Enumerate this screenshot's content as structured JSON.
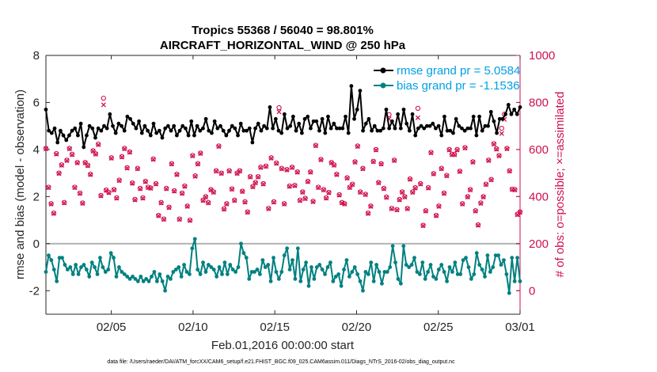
{
  "chart_data": {
    "type": "line",
    "title": "Tropics 55368 / 56040 = 98.801%",
    "subtitle": "AIRCRAFT_HORIZONTAL_WIND @ 250 hPa",
    "xlabel": "Feb.01,2016 00:00:00 start",
    "ylabel_left": "rmse and bias (model - observation)",
    "ylabel_right": "# of obs: o=possible; ×=assimilated",
    "footnote": "data file: /Users/raeder/DAI/ATM_forcXX/CAM6_setup/f.e21.FHIST_BGC.f09_025.CAM6assim.011/Diags_NTrS_2016-02/obs_diag_output.nc",
    "x_ticks": [
      "02/05",
      "02/10",
      "02/15",
      "02/20",
      "02/25",
      "03/01"
    ],
    "x_tick_days": [
      5,
      10,
      15,
      20,
      25,
      30
    ],
    "xlim": [
      1,
      30
    ],
    "ylim_left": [
      -3,
      8
    ],
    "yticks_left": [
      "-2",
      "0",
      "2",
      "4",
      "6",
      "8"
    ],
    "ylim_right": [
      -100,
      1000
    ],
    "yticks_right": [
      "0",
      "200",
      "400",
      "600",
      "800",
      "1000"
    ],
    "grid": false,
    "legend_position": "top-right",
    "colors": {
      "rmse": "#000000",
      "bias": "#008080",
      "obs": "#d0104c",
      "zero": "#b3b3b3",
      "axis": "#262626",
      "legend_text": "#00a0e6"
    },
    "series": [
      {
        "name": "rmse grand pr = 5.0584",
        "key": "rmse",
        "values": [
          5.7,
          4.8,
          4.7,
          4.9,
          4.3,
          4.8,
          4.6,
          4.4,
          4.6,
          4.8,
          4.9,
          4.6,
          5.1,
          4.1,
          4.6,
          5.0,
          4.9,
          4.5,
          4.9,
          4.8,
          5.0,
          4.9,
          5.5,
          5.0,
          4.7,
          5.1,
          5.0,
          4.8,
          5.4,
          5.3,
          5.1,
          4.9,
          5.2,
          4.7,
          5.0,
          4.8,
          4.6,
          5.1,
          4.7,
          4.8,
          4.5,
          4.9,
          5.0,
          4.8,
          5.0,
          4.6,
          4.8,
          5.0,
          4.9,
          4.6,
          5.2,
          4.6,
          5.0,
          4.8,
          4.9,
          5.3,
          4.8,
          4.7,
          5.2,
          4.9,
          5.0,
          4.8,
          4.6,
          4.8,
          5.0,
          4.9,
          4.6,
          5.1,
          4.8,
          4.8,
          4.9,
          4.3,
          4.9,
          5.1,
          4.8,
          5.0,
          4.9,
          5.8,
          4.9,
          5.3,
          4.8,
          4.7,
          5.5,
          4.9,
          5.0,
          5.4,
          4.8,
          5.1,
          4.7,
          5.3,
          5.4,
          4.9,
          5.2,
          5.2,
          4.8,
          5.3,
          4.7,
          5.4,
          4.9,
          5.1,
          4.9,
          4.9,
          4.9,
          5.4,
          4.7,
          6.7,
          5.3,
          5.7,
          6.5,
          4.8,
          5.1,
          5.3,
          4.8,
          5.0,
          4.8,
          4.8,
          4.9,
          5.7,
          4.9,
          5.2,
          4.9,
          5.5,
          4.9,
          5.7,
          5.1,
          4.8,
          5.5,
          4.6,
          4.9,
          5.0,
          4.9,
          5.0,
          5.0,
          5.1,
          4.9,
          5.0,
          4.6,
          5.4,
          4.8,
          4.8,
          4.7,
          5.3,
          5.0,
          4.9,
          4.8,
          4.9,
          4.9,
          5.4,
          4.6,
          5.4,
          4.8,
          5.0,
          5.0,
          5.6,
          5.2,
          4.7,
          5.3,
          5.3,
          5.5,
          5.9,
          5.5,
          5.7,
          5.5,
          5.8
        ]
      },
      {
        "name": "bias grand pr = -1.1536",
        "key": "bias",
        "values": [
          -1.2,
          -0.5,
          -0.7,
          -1.1,
          -1.6,
          -0.6,
          -0.6,
          -0.9,
          -1.1,
          -1.0,
          -1.3,
          -0.9,
          -1.3,
          -1.0,
          -0.9,
          -1.1,
          -1.4,
          -0.8,
          -1.0,
          -1.3,
          -0.6,
          -1.0,
          -1.2,
          -1.1,
          -0.4,
          -0.6,
          -1.4,
          -1.0,
          -1.2,
          -1.3,
          -1.4,
          -1.5,
          -1.4,
          -1.5,
          -1.6,
          -1.4,
          -1.6,
          -1.5,
          -1.6,
          -1.4,
          -1.2,
          -1.6,
          -1.3,
          -1.6,
          -2.0,
          -1.4,
          -1.5,
          -1.2,
          -1.1,
          -1.0,
          -1.4,
          -0.9,
          -1.2,
          -1.3,
          -0.2,
          0.2,
          -1.1,
          -1.3,
          -0.8,
          -1.2,
          -0.9,
          -1.0,
          -1.1,
          -1.4,
          -1.0,
          -1.3,
          -0.8,
          -1.3,
          -0.9,
          -1.1,
          -1.2,
          -1.0,
          0.0,
          -0.4,
          -0.6,
          -1.5,
          -1.2,
          -1.2,
          -1.1,
          -1.3,
          -0.7,
          -1.0,
          -0.9,
          -1.6,
          -0.6,
          -1.2,
          -1.5,
          -1.2,
          -0.5,
          -0.2,
          -1.1,
          -0.7,
          -1.5,
          -0.2,
          -1.6,
          -1.1,
          -0.8,
          -1.8,
          -1.0,
          -1.5,
          -1.0,
          -0.9,
          -1.1,
          -1.3,
          -1.0,
          -0.8,
          -1.6,
          -1.4,
          -1.3,
          -1.8,
          -1.1,
          -0.7,
          -1.4,
          -1.2,
          -1.0,
          -1.3,
          -1.6,
          -2.0,
          -1.2,
          -1.3,
          -0.8,
          -1.6,
          -0.9,
          -1.2,
          -1.7,
          -1.2,
          -1.2,
          -1.0,
          -0.1,
          -0.8,
          -1.5,
          -1.7,
          -0.1,
          -0.9,
          -1.0,
          -0.9,
          -0.6,
          -1.2,
          -1.3,
          -0.8,
          -1.5,
          -1.2,
          -0.9,
          -1.4,
          -1.5,
          -1.1,
          -0.9,
          -1.2,
          -1.6,
          -1.0,
          -1.2,
          -0.8,
          -1.3,
          -1.3,
          -0.7,
          -0.6,
          -1.0,
          -1.5,
          -1.3,
          -0.4,
          -0.9,
          -1.1,
          -1.4,
          -0.5,
          -1.2,
          -1.0,
          -0.5,
          -0.5,
          -0.9,
          -0.7,
          -1.3,
          -2.1,
          -0.6,
          -1.6,
          -0.6,
          -1.6
        ]
      },
      {
        "name": "obs possible",
        "key": "possible",
        "values": [
          605,
          440,
          370,
          330,
          583,
          500,
          535,
          375,
          555,
          605,
          580,
          440,
          545,
          415,
          373,
          545,
          533,
          495,
          595,
          582,
          623,
          405,
          818,
          428,
          418,
          565,
          430,
          395,
          470,
          570,
          605,
          523,
          590,
          458,
          388,
          520,
          435,
          395,
          465,
          440,
          437,
          560,
          455,
          320,
          375,
          305,
          435,
          355,
          540,
          425,
          495,
          305,
          415,
          445,
          360,
          300,
          575,
          488,
          540,
          585,
          385,
          400,
          375,
          430,
          420,
          510,
          615,
          500,
          348,
          370,
          510,
          433,
          385,
          500,
          510,
          423,
          378,
          335,
          485,
          443,
          460,
          485,
          525,
          455,
          530,
          350,
          565,
          378,
          543,
          778,
          520,
          370,
          515,
          445,
          525,
          448,
          505,
          385,
          420,
          393,
          465,
          505,
          380,
          618,
          440,
          558,
          430,
          395,
          418,
          545,
          535,
          495,
          408,
          375,
          370,
          480,
          440,
          453,
          548,
          615,
          420,
          520,
          410,
          330,
          360,
          550,
          600,
          460,
          540,
          435,
          398,
          748,
          350,
          555,
          345,
          388,
          420,
          400,
          350,
          475,
          420,
          438,
          775,
          455,
          278,
          340,
          438,
          588,
          498,
          320,
          360,
          520,
          415,
          490,
          600,
          580,
          580,
          600,
          508,
          370,
          608,
          400,
          430,
          548,
          340,
          280,
          373,
          400,
          453,
          555,
          473,
          625,
          603,
          575,
          690,
          750,
          605,
          510,
          432,
          430,
          325,
          335
        ]
      },
      {
        "name": "obs assimilated",
        "key": "assimilated",
        "values": [
          603,
          438,
          368,
          328,
          580,
          498,
          533,
          373,
          553,
          603,
          578,
          438,
          543,
          413,
          371,
          543,
          531,
          493,
          593,
          580,
          620,
          403,
          790,
          426,
          416,
          563,
          428,
          393,
          468,
          568,
          603,
          521,
          588,
          456,
          386,
          518,
          433,
          393,
          463,
          438,
          435,
          558,
          453,
          318,
          373,
          303,
          433,
          353,
          538,
          423,
          493,
          303,
          413,
          443,
          358,
          298,
          573,
          486,
          538,
          583,
          383,
          398,
          373,
          428,
          418,
          508,
          613,
          498,
          346,
          368,
          508,
          431,
          383,
          498,
          508,
          421,
          376,
          333,
          483,
          441,
          458,
          483,
          523,
          453,
          528,
          348,
          563,
          376,
          541,
          760,
          518,
          368,
          513,
          443,
          523,
          446,
          503,
          383,
          418,
          391,
          463,
          503,
          378,
          616,
          438,
          556,
          428,
          393,
          416,
          543,
          533,
          493,
          406,
          373,
          368,
          478,
          438,
          451,
          546,
          613,
          418,
          518,
          408,
          328,
          358,
          548,
          598,
          458,
          538,
          433,
          396,
          730,
          348,
          553,
          343,
          386,
          418,
          398,
          348,
          473,
          418,
          436,
          735,
          453,
          276,
          338,
          436,
          586,
          496,
          318,
          358,
          518,
          413,
          488,
          598,
          578,
          578,
          598,
          506,
          368,
          606,
          398,
          428,
          546,
          338,
          278,
          371,
          398,
          451,
          553,
          471,
          623,
          601,
          573,
          668,
          728,
          603,
          508,
          430,
          428,
          323,
          333
        ]
      }
    ]
  }
}
